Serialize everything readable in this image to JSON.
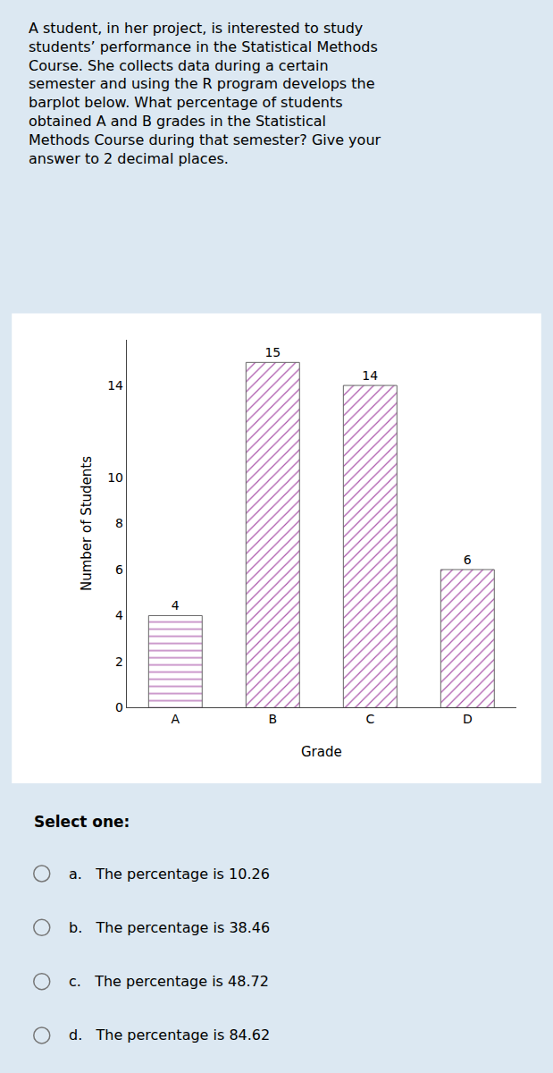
{
  "chart_data": {
    "type": "bar",
    "paragraph": [
      "A student, in her project, is interested to study",
      "students’ performance in the Statistical Methods",
      "Course. She collects data during a certain",
      "semester and using the R program develops the",
      "barplot below. What percentage of students",
      "obtained A and B grades in the Statistical",
      "Methods Course during that semester? Give your",
      "answer to 2 decimal places."
    ],
    "categories": [
      "A",
      "B",
      "C",
      "D"
    ],
    "values": [
      4,
      15,
      14,
      6
    ],
    "color": "#d9a0d9",
    "xlabel": "Grade",
    "ylabel": "Number of Students",
    "ylim": [
      0,
      16
    ],
    "yticks": [
      0,
      2,
      4,
      6,
      8,
      10,
      14
    ],
    "data_labels": true,
    "grid": false,
    "select_one_text": "Select one:",
    "options": [
      "a.   The percentage is 10.26",
      "b.   The percentage is 38.46",
      "c.   The percentage is 48.72",
      "d.   The percentage is 84.62"
    ]
  }
}
